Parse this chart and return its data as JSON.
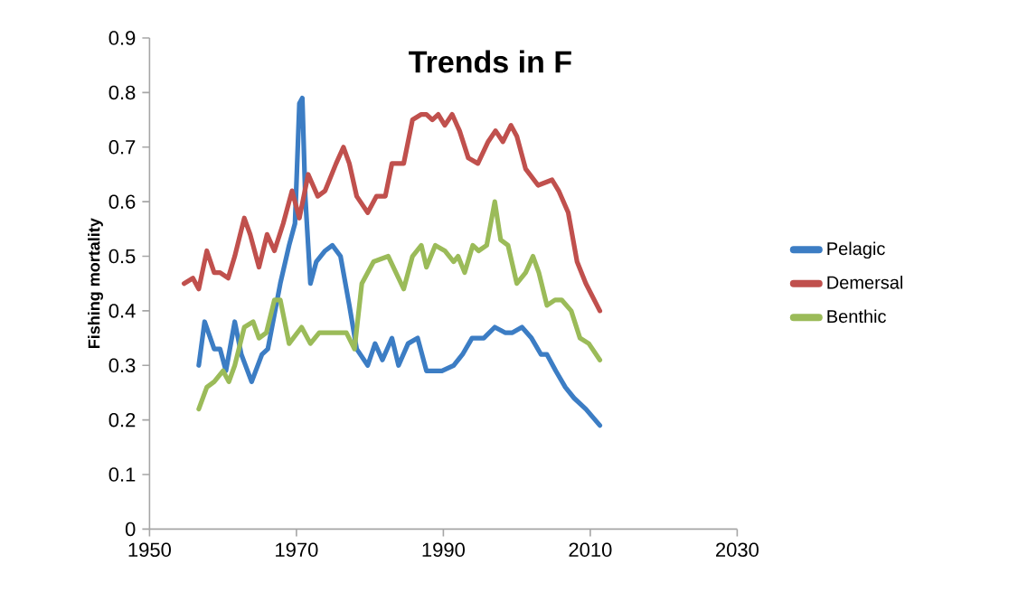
{
  "chart_data": {
    "type": "line",
    "title": "Trends in F",
    "ylabel": "Fishing mortality",
    "xlim": [
      1950,
      2030
    ],
    "xticks": [
      1950,
      1970,
      1990,
      2010,
      2030
    ],
    "ylim": [
      0,
      0.9
    ],
    "yticks": [
      0,
      0.1,
      0.2,
      0.3,
      0.4,
      0.5,
      0.6,
      0.7,
      0.8,
      0.9
    ],
    "grid": false,
    "legend": "right",
    "marker": "none",
    "line_style": "solid",
    "series": [
      {
        "name": "Pelagic",
        "color": "#3c7dc4",
        "x": [
          1956.7,
          1957.5,
          1958.8,
          1959.6,
          1960.4,
          1961.6,
          1962.5,
          1963.9,
          1965.3,
          1966.1,
          1967.8,
          1969.0,
          1969.8,
          1970.4,
          1970.8,
          1971.2,
          1971.9,
          1972.7,
          1973.9,
          1974.9,
          1976.0,
          1977.2,
          1978.2,
          1979.7,
          1980.7,
          1981.7,
          1983.0,
          1983.9,
          1985.2,
          1986.5,
          1987.7,
          1989.8,
          1991.4,
          1992.6,
          1993.9,
          1995.5,
          1997.0,
          1998.4,
          1999.4,
          2000.7,
          2002.0,
          2003.3,
          2004.1,
          2005.3,
          2006.6,
          2007.8,
          2009.4,
          2011.3
        ],
        "values": [
          0.3,
          0.38,
          0.33,
          0.33,
          0.29,
          0.38,
          0.32,
          0.27,
          0.32,
          0.33,
          0.45,
          0.52,
          0.56,
          0.78,
          0.79,
          0.61,
          0.45,
          0.49,
          0.51,
          0.52,
          0.5,
          0.41,
          0.33,
          0.3,
          0.34,
          0.31,
          0.35,
          0.3,
          0.34,
          0.35,
          0.29,
          0.29,
          0.3,
          0.32,
          0.35,
          0.35,
          0.37,
          0.36,
          0.36,
          0.37,
          0.35,
          0.32,
          0.32,
          0.29,
          0.26,
          0.24,
          0.22,
          0.19
        ]
      },
      {
        "name": "Demersal",
        "color": "#c0504d",
        "x": [
          1954.7,
          1955.9,
          1956.7,
          1957.8,
          1958.8,
          1959.6,
          1960.7,
          1961.6,
          1962.9,
          1963.7,
          1964.9,
          1966.0,
          1967.0,
          1968.2,
          1969.4,
          1970.4,
          1971.6,
          1972.9,
          1973.9,
          1975.4,
          1976.4,
          1977.2,
          1978.2,
          1979.7,
          1980.9,
          1982.1,
          1983.0,
          1984.6,
          1985.8,
          1987.0,
          1987.7,
          1988.5,
          1989.3,
          1990.2,
          1991.2,
          1992.2,
          1993.4,
          1994.7,
          1996.1,
          1997.1,
          1998.1,
          1999.2,
          2000.0,
          2001.2,
          2002.9,
          2004.8,
          2005.7,
          2007.0,
          2008.2,
          2009.4,
          2011.3
        ],
        "values": [
          0.45,
          0.46,
          0.44,
          0.51,
          0.47,
          0.47,
          0.46,
          0.5,
          0.57,
          0.54,
          0.48,
          0.54,
          0.51,
          0.56,
          0.62,
          0.57,
          0.65,
          0.61,
          0.62,
          0.67,
          0.7,
          0.67,
          0.61,
          0.58,
          0.61,
          0.61,
          0.67,
          0.67,
          0.75,
          0.76,
          0.76,
          0.75,
          0.76,
          0.74,
          0.76,
          0.73,
          0.68,
          0.67,
          0.71,
          0.73,
          0.71,
          0.74,
          0.72,
          0.66,
          0.63,
          0.64,
          0.62,
          0.58,
          0.49,
          0.45,
          0.4
        ]
      },
      {
        "name": "Benthic",
        "color": "#9bbb59",
        "x": [
          1956.7,
          1957.8,
          1958.8,
          1960.0,
          1960.8,
          1961.6,
          1962.9,
          1964.1,
          1964.9,
          1965.9,
          1967.0,
          1967.8,
          1969.0,
          1970.7,
          1971.9,
          1973.1,
          1974.8,
          1976.0,
          1976.8,
          1977.9,
          1978.9,
          1980.5,
          1982.5,
          1984.6,
          1985.8,
          1987.0,
          1987.7,
          1988.9,
          1990.2,
          1991.4,
          1992.0,
          1992.9,
          1994.0,
          1994.8,
          1995.9,
          1997.0,
          1997.8,
          1998.8,
          2000.0,
          2001.2,
          2002.2,
          2003.0,
          2004.1,
          2005.2,
          2006.1,
          2007.4,
          2008.6,
          2009.8,
          2011.3
        ],
        "values": [
          0.22,
          0.26,
          0.27,
          0.29,
          0.27,
          0.3,
          0.37,
          0.38,
          0.35,
          0.36,
          0.42,
          0.42,
          0.34,
          0.37,
          0.34,
          0.36,
          0.36,
          0.36,
          0.36,
          0.33,
          0.45,
          0.49,
          0.5,
          0.44,
          0.5,
          0.52,
          0.48,
          0.52,
          0.51,
          0.49,
          0.5,
          0.47,
          0.52,
          0.51,
          0.52,
          0.6,
          0.53,
          0.52,
          0.45,
          0.47,
          0.5,
          0.47,
          0.41,
          0.42,
          0.42,
          0.4,
          0.35,
          0.34,
          0.31
        ]
      }
    ]
  }
}
